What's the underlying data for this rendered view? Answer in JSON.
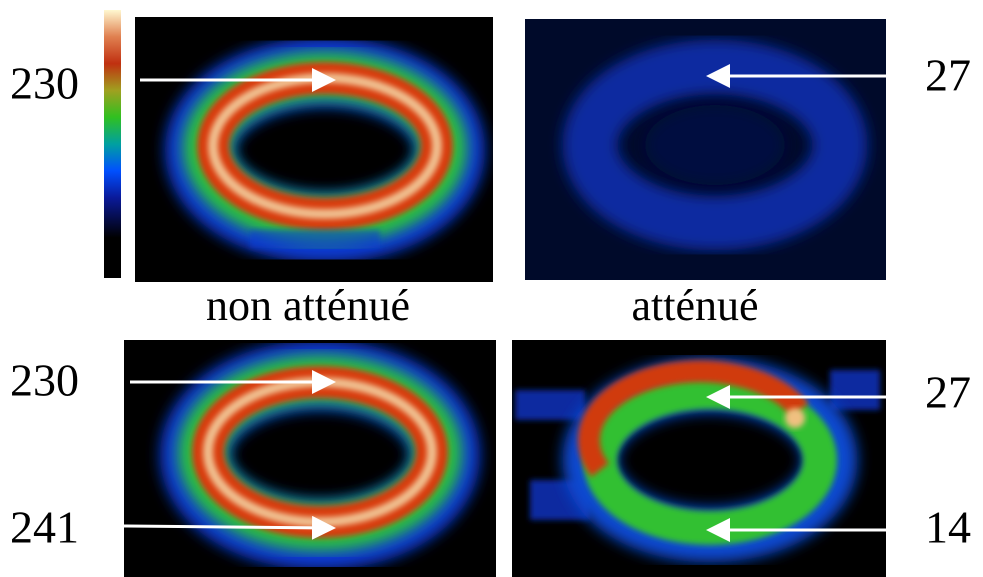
{
  "panels": {
    "top_left": {
      "value": 230
    },
    "top_right": {
      "value": 27
    },
    "bottom_left": {
      "values": [
        230,
        241
      ]
    },
    "bottom_right": {
      "values": [
        27,
        14
      ]
    }
  },
  "captions": [
    "non atténué",
    "atténué"
  ]
}
